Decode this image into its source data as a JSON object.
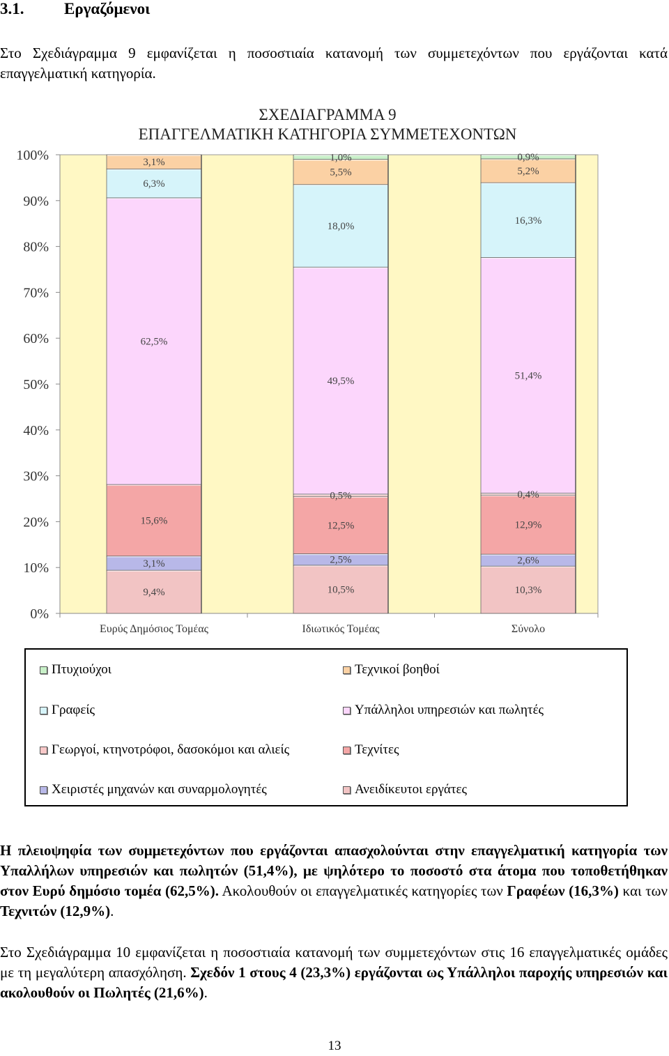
{
  "section": {
    "number": "3.1.",
    "title": "Εργαζόμενοι"
  },
  "intro_text": "Στο Σχεδιάγραμμα 9 εμφανίζεται η ποσοστιαία κατανομή των συμμετεχόντων που εργάζονται κατά επαγγελματική κατηγορία.",
  "chart_data": {
    "type": "bar",
    "stacked": true,
    "title": "ΣΧΕΔΙΑΓΡΑΜΜΑ 9",
    "subtitle": "ΕΠΑΓΓΕΛΜΑΤΙΚΗ ΚΑΤΗΓΟΡΙΑ ΣΥΜΜΕΤΕΧΟΝΤΩΝ",
    "categories": [
      "Ευρύς Δημόσιος Τομέας",
      "Ιδιωτικός Τομέας",
      "Σύνολο"
    ],
    "ylim": [
      0,
      100
    ],
    "y_ticks": [
      "0%",
      "10%",
      "20%",
      "30%",
      "40%",
      "50%",
      "60%",
      "70%",
      "80%",
      "90%",
      "100%"
    ],
    "series": [
      {
        "name": "Ανειδίκευτοι εργάτες",
        "color": "#F2C4C4",
        "values": [
          9.4,
          10.5,
          10.3
        ],
        "labels": [
          "9,4%",
          "10,5%",
          "10,3%"
        ]
      },
      {
        "name": "Χειριστές μηχανών και συναρμολογητές",
        "color": "#B8B8E8",
        "values": [
          3.1,
          2.5,
          2.6
        ],
        "labels": [
          "3,1%",
          "2,5%",
          "2,6%"
        ]
      },
      {
        "name": "Τεχνίτες",
        "color": "#F4A6A6",
        "values": [
          15.6,
          12.5,
          12.9
        ],
        "labels": [
          "15,6%",
          "12,5%",
          "12,9%"
        ]
      },
      {
        "name": "Γεωργοί, κτηνοτρόφοι, δασοκόμοι και αλιείς",
        "color": "#F8C8C8",
        "values": [
          0.0,
          0.5,
          0.4
        ],
        "labels": [
          "",
          "0,5%",
          "0,4%"
        ]
      },
      {
        "name": "Υπάλληλοι υπηρεσιών και πωλητές",
        "color": "#FCD6FC",
        "values": [
          62.5,
          49.5,
          51.4
        ],
        "labels": [
          "62,5%",
          "49,5%",
          "51,4%"
        ]
      },
      {
        "name": "Γραφείς",
        "color": "#D6F4FA",
        "values": [
          6.3,
          18.0,
          16.3
        ],
        "labels": [
          "6,3%",
          "18,0%",
          "16,3%"
        ]
      },
      {
        "name": "Τεχνικοί βοηθοί",
        "color": "#FBD1A4",
        "values": [
          3.1,
          5.5,
          5.2
        ],
        "labels": [
          "3,1%",
          "5,5%",
          "5,2%"
        ]
      },
      {
        "name": "Πτυχιούχοι",
        "color": "#C8F0C8",
        "values": [
          0.0,
          1.0,
          0.9
        ],
        "labels": [
          "",
          "1,0%",
          "0,9%"
        ]
      }
    ],
    "plot_background": "#FFF8C4",
    "legend_position": "bottom"
  },
  "legend": {
    "items": [
      {
        "label": "Πτυχιούχοι",
        "color": "#C8F0C8"
      },
      {
        "label": "Τεχνικοί βοηθοί",
        "color": "#FBD1A4"
      },
      {
        "label": "Γραφείς",
        "color": "#D6F4FA"
      },
      {
        "label": "Υπάλληλοι υπηρεσιών και πωλητές",
        "color": "#FCD6FC"
      },
      {
        "label": "Γεωργοί, κτηνοτρόφοι, δασοκόμοι και αλιείς",
        "color": "#F8C8C8"
      },
      {
        "label": "Τεχνίτες",
        "color": "#F4A6A6"
      },
      {
        "label": "Χειριστές μηχανών και συναρμολογητές",
        "color": "#B8B8E8"
      },
      {
        "label": "Ανειδίκευτοι εργάτες",
        "color": "#F2C4C4"
      }
    ]
  },
  "summary": {
    "bold_part": "Η πλειοψηφία των συμμετεχόντων που εργάζονται απασχολούνται στην επαγγελματική κατηγορία των Υπαλλήλων υπηρεσιών και πωλητών (51,4%), με ψηλότερο το ποσοστό στα άτομα που τοποθετήθηκαν στον Ευρύ δημόσιο τομέα (62,5%).",
    "normal_1": " Ακολουθούν οι επαγγελματικές κατηγορίες των ",
    "bold_2": "Γραφέων (16,3%)",
    "normal_2": " και των ",
    "bold_3": "Τεχνιτών (12,9%)",
    "normal_3": "."
  },
  "next_text": {
    "normal": "Στο Σχεδιάγραμμα 10 εμφανίζεται η ποσοστιαία κατανομή των συμμετεχόντων στις 16 επαγγελματικές ομάδες με τη μεγαλύτερη απασχόληση. ",
    "bold": "Σχεδόν 1 στους 4 (23,3%) εργάζονται ως Υπάλληλοι παροχής υπηρεσιών και ακολουθούν οι Πωλητές (21,6%)",
    "end": "."
  },
  "page_number": "13"
}
